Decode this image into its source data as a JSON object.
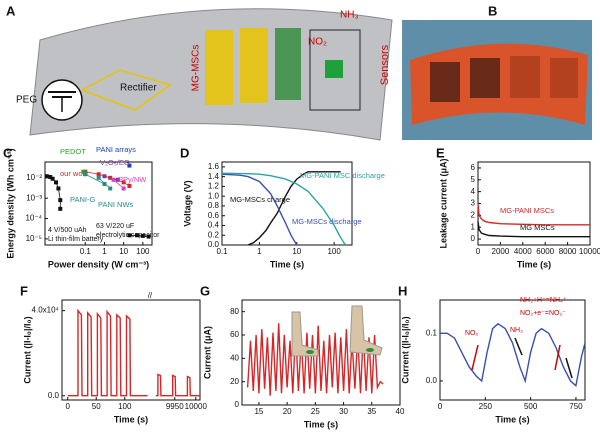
{
  "diagram": {
    "label": "A",
    "peg": "PEG",
    "rectifier": "Rectifier",
    "msc": "MG-MSCs",
    "nh3": "NH₃",
    "no2": "NO₂",
    "sensors": "Sensors"
  },
  "photo": {
    "label": "B"
  },
  "chart_data": [
    {
      "type": "scatter",
      "label": "C",
      "xlabel": "Power density (W cm⁻³)",
      "ylabel": "Energy density (Wh cm⁻³)",
      "xlog": true,
      "ylog": true,
      "xlim": [
        0.0008,
        300
      ],
      "ylim": [
        5e-06,
        0.06
      ],
      "xticks": [
        0.1,
        1,
        10,
        100
      ],
      "yticks": [
        {
          "value": 1e-05,
          "label": "10⁻⁵"
        },
        {
          "value": 0.0001,
          "label": "10⁻⁴"
        },
        {
          "value": 0.001,
          "label": "10⁻³"
        },
        {
          "value": 0.01,
          "label": "10⁻²"
        }
      ],
      "annotations": [
        "4 V/500 uAh",
        "Li thin-film battery",
        "63 V/220 uF",
        "electrolytic capacitor"
      ],
      "series": [
        {
          "color": "#111111",
          "x": [
            0.001,
            0.0015,
            0.002,
            0.003,
            0.004,
            0.005,
            0.005
          ],
          "values": [
            0.012,
            0.011,
            0.009,
            0.006,
            0.003,
            0.0008,
            0.0003
          ]
        },
        {
          "color": "#111111",
          "x": [
            20,
            50,
            100,
            200
          ],
          "values": [
            1.5e-05,
            1.5e-05,
            1.4e-05,
            1.3e-05
          ]
        },
        {
          "name": "our work",
          "color": "#d62728",
          "x": [
            0.1,
            0.5,
            2,
            10,
            20
          ],
          "values": [
            0.02,
            0.015,
            0.01,
            0.006,
            0.004
          ]
        },
        {
          "name": "PEDOT",
          "color": "#2ca02c",
          "x": [
            0.08
          ],
          "values": [
            0.02
          ]
        },
        {
          "name": "PANI arrays",
          "color": "#1f3fbf",
          "x": [
            20
          ],
          "values": [
            0.04
          ]
        },
        {
          "name": "V₂O₅/EG",
          "color": "#7b3fa0",
          "x": [
            1,
            5
          ],
          "values": [
            0.012,
            0.008
          ]
        },
        {
          "name": "PPy/NW",
          "color": "#d63fbf",
          "x": [
            3,
            10
          ],
          "values": [
            0.008,
            0.003
          ]
        },
        {
          "name": "PANI-G",
          "color": "#2a8a8a",
          "x": [
            0.1,
            1
          ],
          "values": [
            0.015,
            0.005
          ]
        },
        {
          "name": "PANI NWs",
          "color": "#2a8a8a",
          "x": [
            0.5,
            2
          ],
          "values": [
            0.01,
            0.003
          ]
        }
      ]
    },
    {
      "type": "line",
      "label": "D",
      "xlabel": "Time (s)",
      "ylabel": "Voltage (V)",
      "xlog": true,
      "xlim": [
        0.1,
        300
      ],
      "ylim": [
        0,
        1.7
      ],
      "xticks": [
        0.1,
        1,
        10,
        100
      ],
      "yticks": [
        {
          "value": 0,
          "label": "0.0"
        },
        0.2,
        0.4,
        0.6,
        0.8,
        {
          "value": 1,
          "label": "1.0"
        },
        1.2,
        1.4,
        1.6
      ],
      "series": [
        {
          "name": "MG-MSCs charge",
          "color": "#111111",
          "x": [
            0.5,
            0.7,
            1,
            1.5,
            2,
            3,
            4,
            5,
            7,
            10,
            15,
            20,
            50,
            100,
            150
          ],
          "values": [
            0,
            0.05,
            0.15,
            0.3,
            0.45,
            0.65,
            0.85,
            1.0,
            1.2,
            1.35,
            1.45,
            1.5,
            1.5,
            1.5,
            1.5
          ]
        },
        {
          "name": "MG-MSCs discharge",
          "color": "#3a4fb0",
          "x": [
            0.1,
            0.3,
            0.5,
            1,
            2,
            3,
            5,
            7,
            10
          ],
          "values": [
            1.45,
            1.43,
            1.4,
            1.3,
            1.05,
            0.8,
            0.45,
            0.2,
            0
          ]
        },
        {
          "name": "MG-PANI MSC discharge",
          "color": "#2aa6a0",
          "x": [
            0.1,
            0.5,
            1,
            2,
            5,
            10,
            20,
            50,
            100,
            150,
            200
          ],
          "values": [
            1.47,
            1.46,
            1.45,
            1.42,
            1.35,
            1.25,
            1.1,
            0.75,
            0.4,
            0.15,
            0
          ]
        }
      ]
    },
    {
      "type": "line",
      "label": "E",
      "xlabel": "Time (s)",
      "ylabel": "Leakage current (μA)",
      "xlim": [
        0,
        10000
      ],
      "ylim": [
        -0.5,
        6.5
      ],
      "xticks": [
        0,
        2000,
        4000,
        6000,
        8000,
        10000
      ],
      "yticks": [
        0,
        1,
        2,
        3,
        4,
        5,
        6
      ],
      "series": [
        {
          "name": "MG-PANI MSCs",
          "color": "#d62728",
          "x": [
            0,
            100,
            300,
            600,
            1000,
            2000,
            4000,
            6000,
            8000,
            10000
          ],
          "values": [
            3,
            2,
            1.7,
            1.5,
            1.4,
            1.3,
            1.25,
            1.2,
            1.2,
            1.2
          ]
        },
        {
          "name": "MG MSCs",
          "color": "#111111",
          "x": [
            0,
            100,
            300,
            600,
            1000,
            2000,
            4000,
            6000,
            8000,
            10000
          ],
          "values": [
            1.5,
            0.8,
            0.5,
            0.4,
            0.3,
            0.25,
            0.2,
            0.2,
            0.2,
            0.2
          ]
        }
      ]
    },
    {
      "type": "line",
      "label": "F",
      "xlabel": "Time (s)",
      "ylabel": "Current (|I-I₀|/I₀)",
      "xlim": [
        -10,
        10010
      ],
      "xbreak": [
        140,
        9905
      ],
      "ylim": [
        -2000,
        45000
      ],
      "xticks": [
        0,
        50,
        100,
        9950,
        10000
      ],
      "yticks": [
        {
          "value": 0,
          "label": "0.0"
        },
        {
          "value": 40000,
          "label": "4.0x10⁴"
        }
      ],
      "series": [
        {
          "color": "#d62728",
          "x": [
            0,
            18,
            18,
            24,
            25,
            35,
            35,
            41,
            42,
            52,
            52,
            58,
            59,
            69,
            69,
            75,
            76,
            86,
            86,
            92,
            93,
            103,
            103,
            109,
            110,
            140
          ],
          "values": [
            0,
            0,
            40000,
            38000,
            0,
            0,
            39000,
            37000,
            0,
            0,
            38500,
            36500,
            0,
            0,
            39500,
            37500,
            0,
            0,
            38000,
            36500,
            0,
            0,
            37500,
            36000,
            0,
            0
          ]
        },
        {
          "color": "#d62728",
          "x": [
            9905,
            9910,
            9910,
            9916,
            9917,
            9945,
            9945,
            9951,
            9952,
            9980,
            9980,
            9986,
            9987,
            10010
          ],
          "values": [
            0,
            0,
            10000,
            9500,
            0,
            0,
            9500,
            9000,
            0,
            0,
            9000,
            8500,
            0,
            0
          ]
        }
      ]
    },
    {
      "type": "line",
      "label": "G",
      "xlabel": "Time (s)",
      "ylabel": "Current (μA)",
      "xlim": [
        12,
        40
      ],
      "ylim": [
        0,
        90
      ],
      "xticks": [
        15,
        20,
        25,
        30,
        35,
        40
      ],
      "yticks": [
        0,
        20,
        40,
        60,
        80
      ],
      "series": [
        {
          "color": "#d62728",
          "x": [
            13,
            13.5,
            14,
            14.5,
            15,
            15.5,
            16,
            16.5,
            17,
            17.5,
            18,
            18.5,
            19,
            19.5,
            20,
            20.5,
            21,
            21.5,
            22,
            22.5,
            23,
            23.5,
            24,
            24.5,
            25,
            25.5,
            26,
            26.5,
            27,
            27.5,
            28,
            28.5,
            29,
            29.5,
            30,
            30.5,
            31,
            31.5,
            32,
            32.5,
            33,
            33.5,
            34,
            34.5,
            35,
            35.5,
            36,
            36.5,
            37
          ],
          "values": [
            15,
            55,
            12,
            60,
            10,
            65,
            14,
            58,
            8,
            62,
            12,
            70,
            10,
            60,
            15,
            55,
            10,
            66,
            12,
            58,
            10,
            62,
            14,
            60,
            10,
            68,
            12,
            55,
            10,
            60,
            15,
            62,
            10,
            58,
            12,
            65,
            10,
            55,
            14,
            60,
            10,
            62,
            12,
            58,
            10,
            60,
            15,
            20,
            18
          ]
        }
      ]
    },
    {
      "type": "line",
      "label": "H",
      "xlabel": "Time (s)",
      "ylabel": "Current (|I-I₀|/I₀)",
      "xlim": [
        0,
        800
      ],
      "ylim": [
        -0.04,
        0.17
      ],
      "xticks": [
        0,
        250,
        500,
        750
      ],
      "yticks": [
        {
          "value": 0,
          "label": "0.0"
        },
        0.1
      ],
      "annotations": [
        "NO₂",
        "NH₃",
        "NH₃+H⁺=NH₄⁺",
        "NO₂+e⁻=NO₂⁻"
      ],
      "series": [
        {
          "color": "#3a4fb0",
          "x": [
            0,
            40,
            80,
            120,
            160,
            200,
            230,
            260,
            290,
            320,
            360,
            400,
            440,
            470,
            500,
            530,
            560,
            600,
            640,
            680,
            720,
            750,
            780,
            800
          ],
          "values": [
            0.1,
            0.1,
            0.09,
            0.06,
            0.03,
            0.01,
            0.0,
            0.06,
            0.11,
            0.12,
            0.11,
            0.08,
            0.03,
            0.0,
            0.06,
            0.1,
            0.11,
            0.1,
            0.07,
            0.03,
            0.0,
            -0.01,
            0.05,
            0.08
          ]
        }
      ]
    }
  ]
}
